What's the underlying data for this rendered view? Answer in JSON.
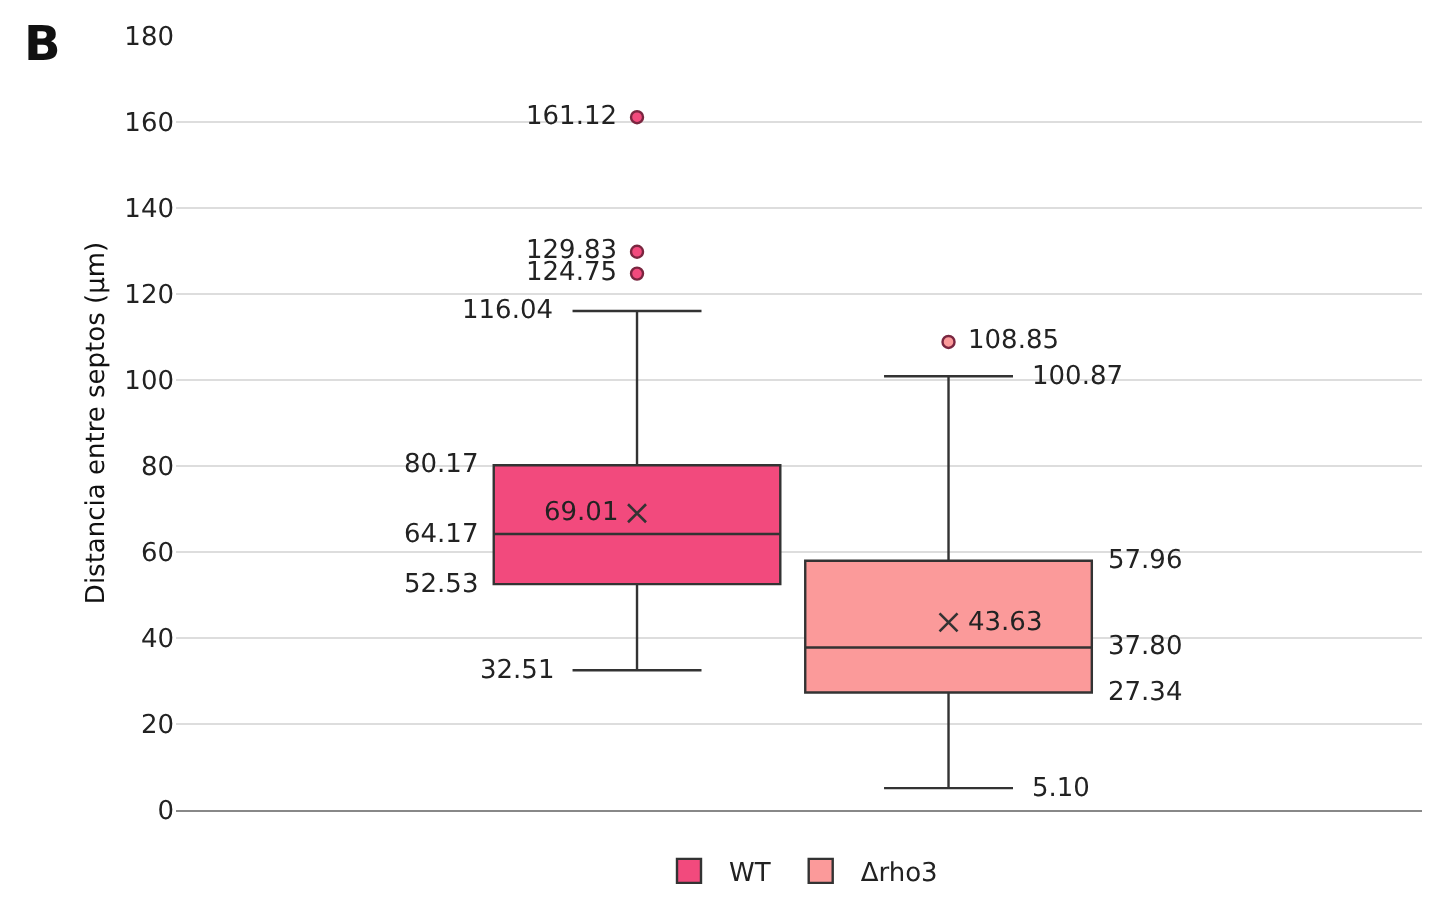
{
  "chart_data": {
    "type": "box",
    "ylabel": "Distancia entre septos (µm)",
    "annotations": [
      "B",
      "161.12",
      "129.83",
      "124.75",
      "116.04",
      "80.17",
      "69.01",
      "64.17",
      "52.53",
      "32.51",
      "108.85",
      "100.87",
      "57.96",
      "43.63",
      "37.80",
      "27.34",
      "5.10"
    ],
    "categories": [
      null
    ],
    "series": [
      {
        "name": "WT",
        "color": "#f24a7d",
        "boxes": [
          {
            "low": 32.51,
            "q1": 52.53,
            "median": 64.17,
            "q3": 80.17,
            "high": 116.04,
            "mean": 69.01,
            "outliers": [
              124.75,
              129.83,
              161.12
            ]
          }
        ]
      },
      {
        "name": "Δrho3",
        "color": "#fb9a9a",
        "boxes": [
          {
            "low": 5.1,
            "q1": 27.34,
            "median": 37.8,
            "q3": 57.96,
            "high": 100.87,
            "mean": 43.63,
            "outliers": [
              108.85
            ]
          }
        ]
      }
    ],
    "ylim": [
      0,
      180
    ],
    "yticks": [
      0,
      20,
      40,
      60,
      80,
      100,
      120,
      140,
      160,
      180
    ],
    "grid": "y",
    "legend": "bottom",
    "marker": "circle"
  }
}
